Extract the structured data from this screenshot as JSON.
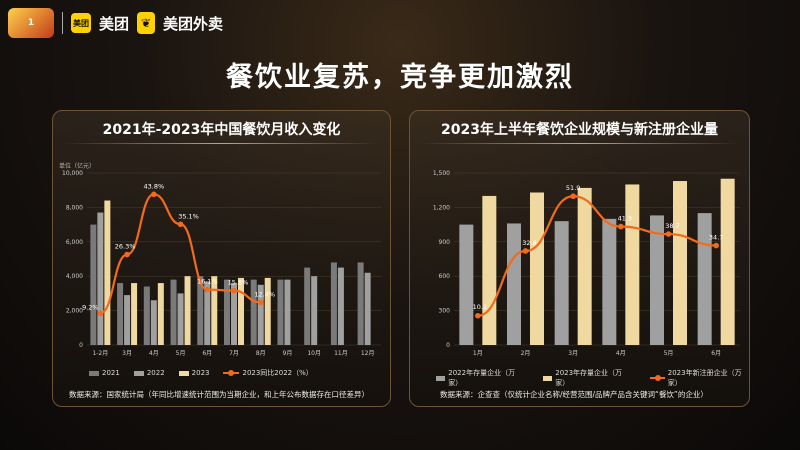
{
  "brand": {
    "seal_text": "1",
    "logo1_text": "美团",
    "logo1_box": "美团",
    "logo2_text": "美团外卖"
  },
  "headline": "餐饮业复苏，竞争更加激烈",
  "colors": {
    "bar2021": "#7a7a7a",
    "bar2022": "#a0a0a0",
    "bar2023": "#f0d9a0",
    "line": "#f26b1d",
    "accent": "#d4a253"
  },
  "chart_data": [
    {
      "type": "bar",
      "title": "2021年-2023年中国餐饮月收入变化",
      "unit": "单位（亿元）",
      "categories": [
        "1-2月",
        "3月",
        "4月",
        "5月",
        "6月",
        "7月",
        "8月",
        "9月",
        "10月",
        "11月",
        "12月"
      ],
      "y_ticks": [
        "0",
        "2,000",
        "4,000",
        "6,000",
        "8,000",
        "10,000"
      ],
      "ylim": [
        0,
        10000
      ],
      "series": [
        {
          "name": "2021",
          "values": [
            7000,
            3600,
            3400,
            3800,
            4000,
            3800,
            3800,
            3800,
            4500,
            4800,
            4800
          ]
        },
        {
          "name": "2022",
          "values": [
            7700,
            2900,
            2600,
            3000,
            3700,
            3600,
            3500,
            3800,
            4000,
            4500,
            4200
          ]
        },
        {
          "name": "2023",
          "values": [
            8400,
            3600,
            3600,
            4000,
            4000,
            3900,
            3900,
            null,
            null,
            null,
            null
          ]
        }
      ],
      "line": {
        "name": "2023同比2022（%）",
        "values": [
          9.2,
          26.3,
          43.8,
          35.1,
          16.1,
          15.8,
          12.4
        ],
        "labels": [
          "9.2%",
          "26.3%",
          "43.8%",
          "35.1%",
          "16.1%",
          "15.8%",
          "12.4%"
        ],
        "ylim": [
          0,
          50
        ]
      },
      "legend": [
        "2021",
        "2022",
        "2023",
        "2023同比2022（%）"
      ],
      "source": "数据来源：国家统计局（年同比增速统计范围为当期企业，和上年公布数据存在口径差异）"
    },
    {
      "type": "bar",
      "title": "2023年上半年餐饮企业规模与新注册企业量",
      "categories": [
        "1月",
        "2月",
        "3月",
        "4月",
        "5月",
        "6月"
      ],
      "y_ticks": [
        "0",
        "300",
        "600",
        "900",
        "1,200",
        "1,500"
      ],
      "ylim": [
        0,
        1500
      ],
      "series": [
        {
          "name": "2022年存量企业（万家）",
          "values": [
            1050,
            1060,
            1080,
            1100,
            1130,
            1150
          ]
        },
        {
          "name": "2023年存量企业（万家）",
          "values": [
            1300,
            1330,
            1370,
            1400,
            1430,
            1450
          ]
        }
      ],
      "line": {
        "name": "2023年新注册企业（万家）",
        "values": [
          10.2,
          32.8,
          51.9,
          41.3,
          38.7,
          34.7
        ],
        "labels": [
          "10.2",
          "32.8",
          "51.9",
          "41.3",
          "38.7",
          "34.7"
        ],
        "ylim": [
          0,
          60
        ]
      },
      "legend": [
        "2022年存量企业（万家）",
        "2023年存量企业（万家）",
        "2023年新注册企业（万家）"
      ],
      "source": "数据来源：企查查（仅统计企业名称/经营范围/品牌产品含关键词“餐饮”的企业）"
    }
  ]
}
